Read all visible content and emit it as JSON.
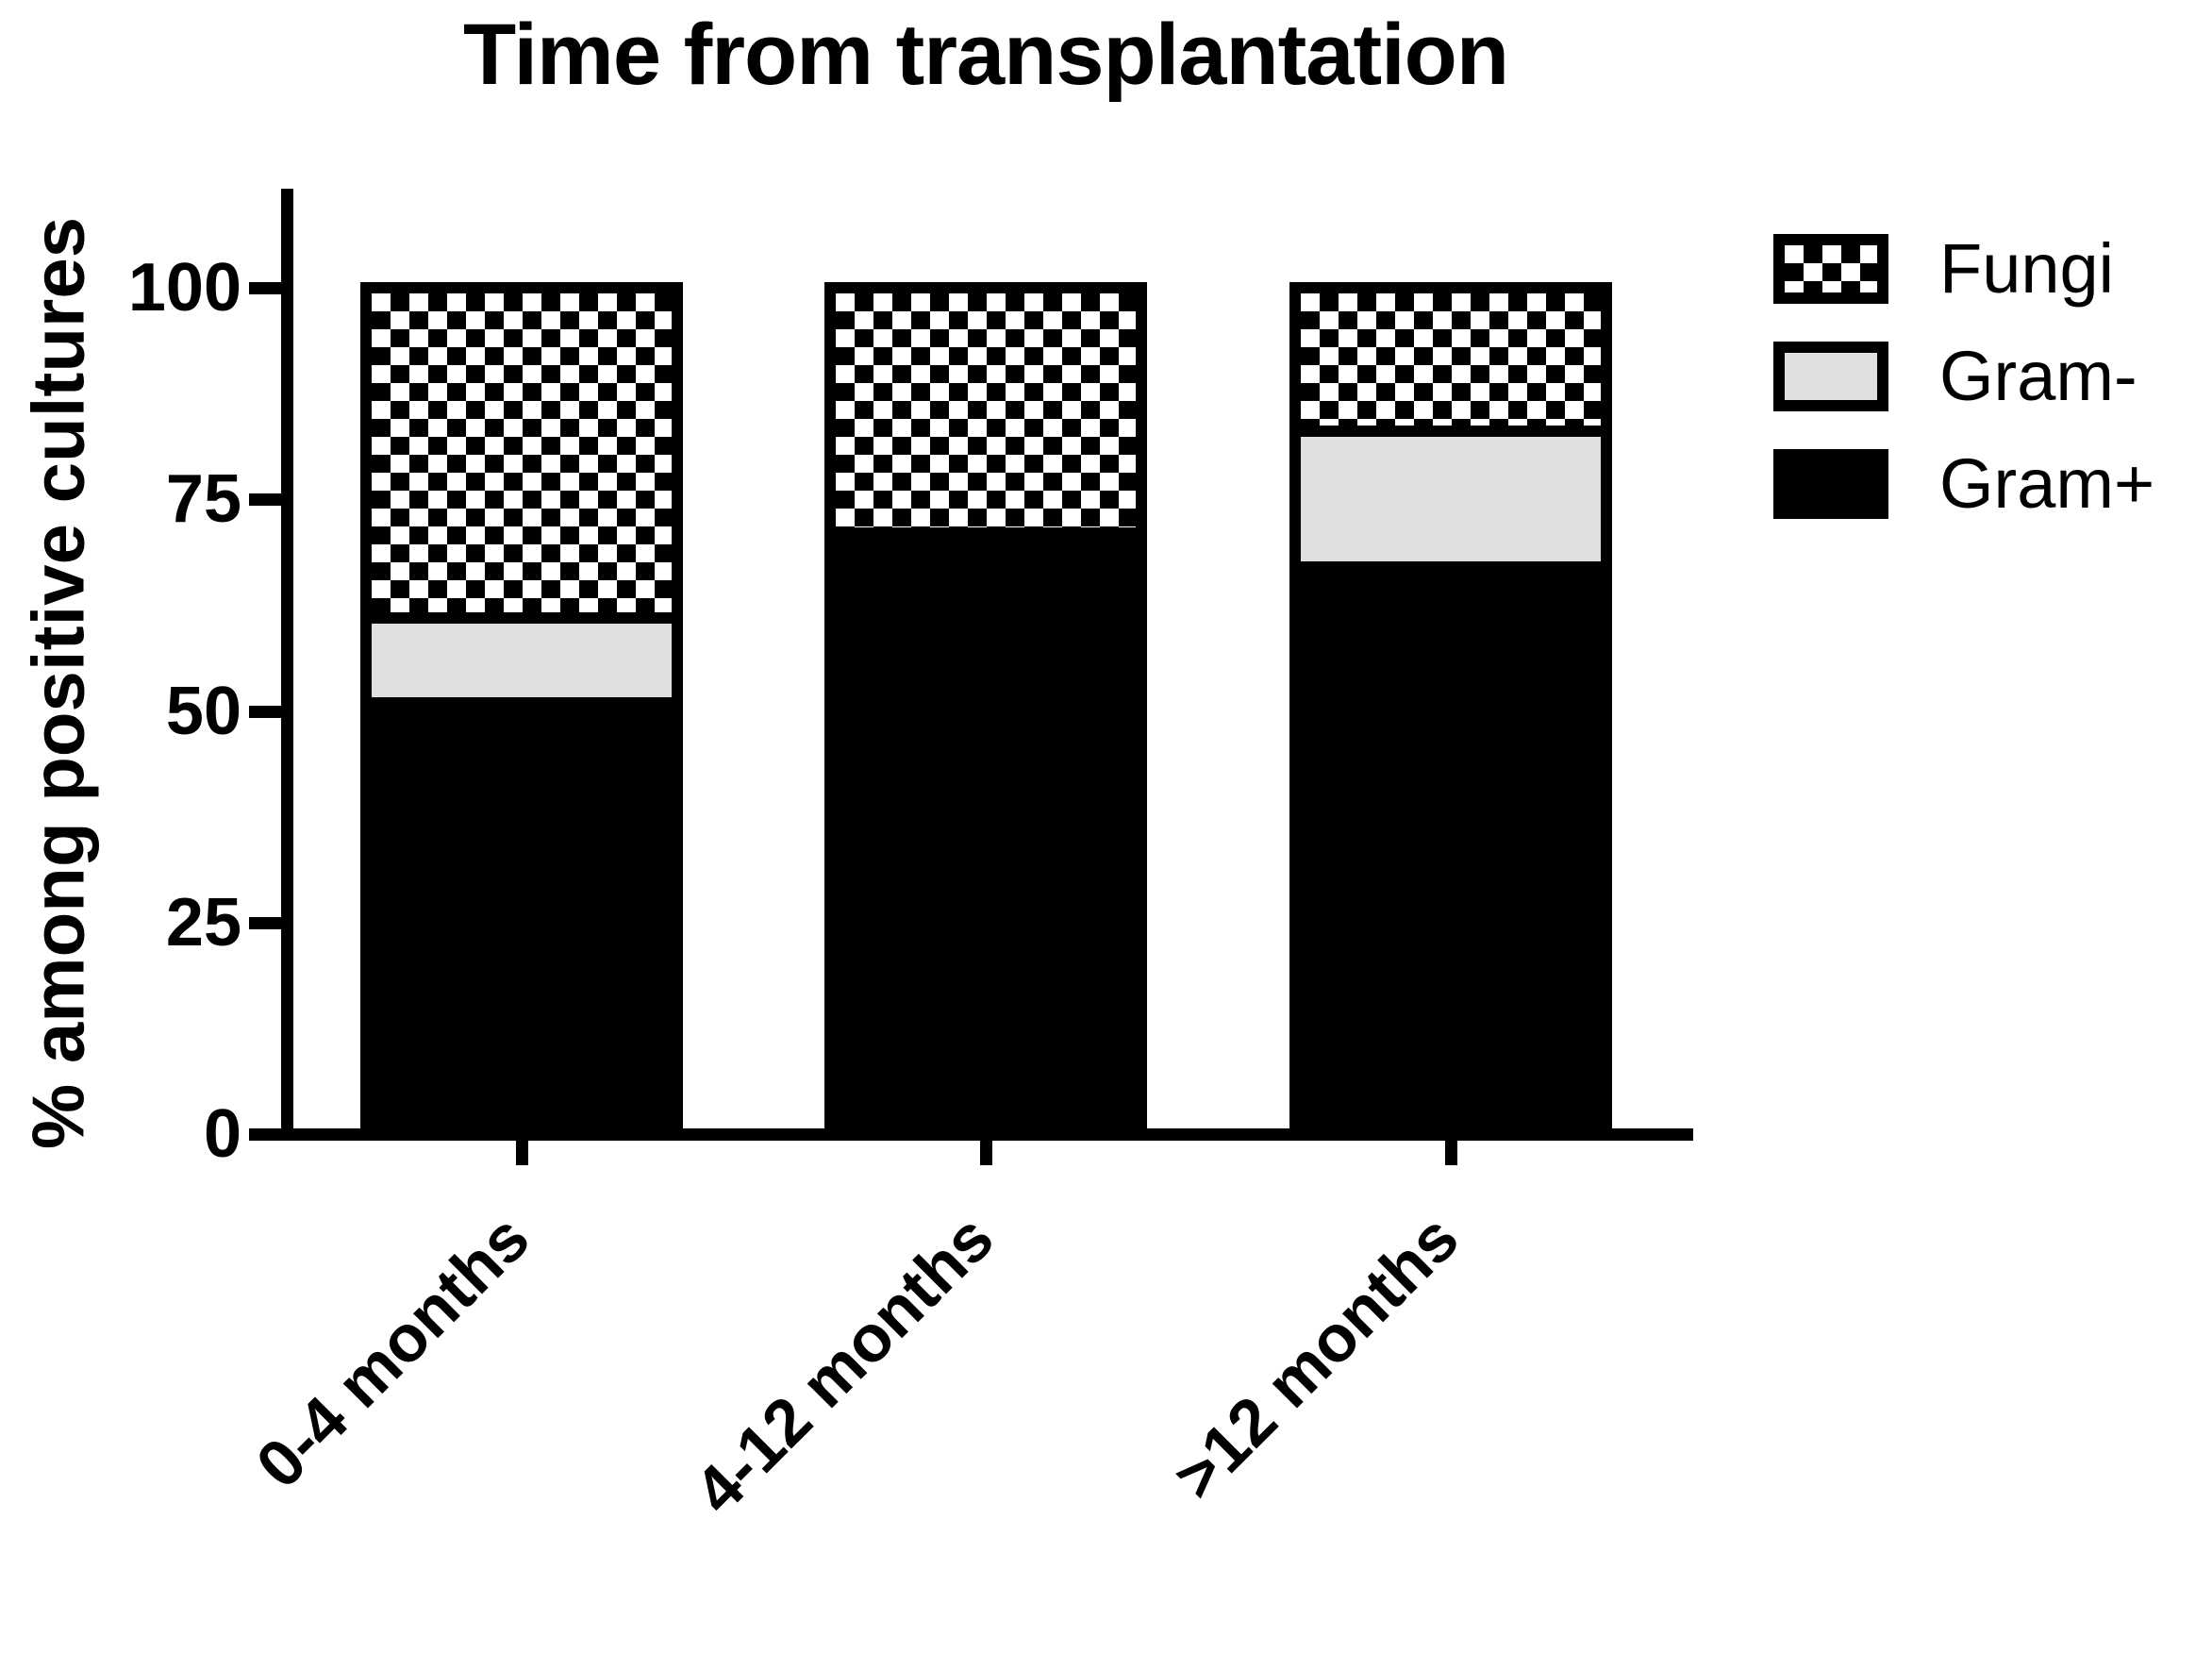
{
  "chart_data": {
    "type": "bar",
    "stacked": true,
    "title": "Time from transplantation",
    "ylabel": "% among positive cultures",
    "xlabel": "",
    "categories": [
      "0-4 months",
      "4-12 months",
      ">12 months"
    ],
    "series": [
      {
        "name": "Gram+",
        "pattern": "solid",
        "fill": "#000000",
        "values": [
          51,
          71,
          67
        ]
      },
      {
        "name": "Gram-",
        "pattern": "solid",
        "fill": "#e0e0e0",
        "values": [
          10,
          0,
          16
        ]
      },
      {
        "name": "Fungi",
        "pattern": "checkerboard",
        "fill": "#ffffff",
        "values": [
          39,
          29,
          17
        ]
      }
    ],
    "legend": [
      {
        "label": "Fungi"
      },
      {
        "label": "Gram-"
      },
      {
        "label": "Gram+"
      }
    ],
    "legend_position": "top-right",
    "yticks": [
      100,
      75,
      50,
      25,
      0
    ],
    "ylim": [
      0,
      100
    ],
    "grid": false,
    "axis_color": "#000000",
    "background_color": "#ffffff",
    "gram_negative_fill": "#e0e0e0"
  }
}
